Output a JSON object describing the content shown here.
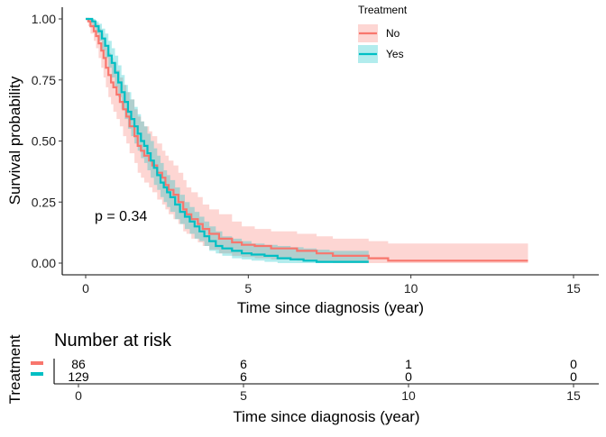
{
  "chart_data": [
    {
      "type": "line",
      "subtype": "kaplan-meier-survival",
      "title": "",
      "xlabel": "Time since diagnosis (year)",
      "ylabel": "Survival probability",
      "xlim": [
        -0.4,
        15.7
      ],
      "ylim": [
        -0.05,
        1.04
      ],
      "xticks": [
        0,
        5,
        10,
        15
      ],
      "xtick_labels": [
        "0",
        "5",
        "10",
        "15"
      ],
      "yticks": [
        0,
        0.25,
        0.5,
        0.75,
        1
      ],
      "ytick_labels": [
        "0.00",
        "0.25",
        "0.50",
        "0.75",
        "1.00"
      ],
      "grid": false,
      "legend": {
        "title": "Treatment",
        "position": "top-right",
        "entries": [
          "No",
          "Yes"
        ]
      },
      "annotation": {
        "text": "p = 0.34",
        "x": 0.3,
        "y": 0.18
      },
      "series": [
        {
          "name": "No",
          "color": "#F8766D",
          "band_color": "#F8766D",
          "x": [
            0,
            0.08,
            0.15,
            0.25,
            0.32,
            0.4,
            0.48,
            0.55,
            0.62,
            0.7,
            0.78,
            0.85,
            0.95,
            1.05,
            1.15,
            1.25,
            1.35,
            1.5,
            1.6,
            1.7,
            1.8,
            1.95,
            2.05,
            2.2,
            2.35,
            2.45,
            2.55,
            2.7,
            2.85,
            3.0,
            3.1,
            3.25,
            3.45,
            3.6,
            3.8,
            4.1,
            4.5,
            4.8,
            5.2,
            5.7,
            6.5,
            7.1,
            7.6,
            8.7,
            9.3,
            12.5,
            13.6
          ],
          "y": [
            1.0,
            0.99,
            0.97,
            0.95,
            0.93,
            0.9,
            0.87,
            0.84,
            0.8,
            0.77,
            0.74,
            0.72,
            0.69,
            0.66,
            0.63,
            0.6,
            0.56,
            0.52,
            0.48,
            0.46,
            0.44,
            0.42,
            0.4,
            0.37,
            0.35,
            0.32,
            0.3,
            0.28,
            0.25,
            0.22,
            0.2,
            0.18,
            0.16,
            0.14,
            0.12,
            0.1,
            0.085,
            0.075,
            0.07,
            0.06,
            0.05,
            0.04,
            0.03,
            0.02,
            0.01,
            0.01,
            0.01
          ],
          "lower": [
            1.0,
            0.97,
            0.94,
            0.91,
            0.88,
            0.84,
            0.8,
            0.76,
            0.72,
            0.68,
            0.65,
            0.62,
            0.59,
            0.56,
            0.52,
            0.49,
            0.45,
            0.41,
            0.37,
            0.35,
            0.33,
            0.31,
            0.29,
            0.26,
            0.24,
            0.22,
            0.2,
            0.18,
            0.16,
            0.13,
            0.12,
            0.1,
            0.085,
            0.07,
            0.055,
            0.04,
            0.03,
            0.025,
            0.02,
            0.015,
            0.01,
            0.005,
            0,
            0,
            0,
            0,
            0
          ],
          "upper": [
            1.0,
            1.0,
            1.0,
            0.99,
            0.98,
            0.96,
            0.94,
            0.92,
            0.89,
            0.86,
            0.84,
            0.82,
            0.79,
            0.76,
            0.73,
            0.7,
            0.67,
            0.63,
            0.6,
            0.58,
            0.56,
            0.54,
            0.52,
            0.49,
            0.46,
            0.44,
            0.42,
            0.4,
            0.37,
            0.34,
            0.31,
            0.29,
            0.27,
            0.24,
            0.22,
            0.2,
            0.17,
            0.15,
            0.14,
            0.13,
            0.12,
            0.11,
            0.1,
            0.09,
            0.08,
            0.08,
            0.08
          ]
        },
        {
          "name": "Yes",
          "color": "#00BFC4",
          "band_color": "#00BFC4",
          "x": [
            0,
            0.1,
            0.2,
            0.3,
            0.4,
            0.5,
            0.6,
            0.7,
            0.8,
            0.9,
            1.0,
            1.1,
            1.2,
            1.3,
            1.4,
            1.5,
            1.6,
            1.7,
            1.8,
            1.9,
            2.0,
            2.1,
            2.2,
            2.3,
            2.4,
            2.5,
            2.6,
            2.75,
            2.9,
            3.05,
            3.2,
            3.35,
            3.5,
            3.65,
            3.8,
            4.0,
            4.2,
            4.5,
            4.8,
            5.1,
            5.5,
            5.9,
            6.3,
            6.7,
            7.1,
            7.5,
            8.7
          ],
          "y": [
            1.0,
            1.0,
            0.99,
            0.97,
            0.95,
            0.92,
            0.89,
            0.85,
            0.82,
            0.78,
            0.74,
            0.7,
            0.66,
            0.62,
            0.59,
            0.56,
            0.53,
            0.5,
            0.48,
            0.45,
            0.42,
            0.39,
            0.36,
            0.33,
            0.31,
            0.29,
            0.27,
            0.24,
            0.21,
            0.19,
            0.17,
            0.15,
            0.13,
            0.11,
            0.09,
            0.07,
            0.06,
            0.05,
            0.04,
            0.035,
            0.03,
            0.02,
            0.015,
            0.01,
            0.005,
            0.005,
            0.005
          ],
          "lower": [
            1.0,
            0.99,
            0.97,
            0.94,
            0.91,
            0.87,
            0.84,
            0.8,
            0.76,
            0.72,
            0.68,
            0.63,
            0.59,
            0.55,
            0.52,
            0.49,
            0.46,
            0.43,
            0.41,
            0.38,
            0.35,
            0.32,
            0.3,
            0.27,
            0.25,
            0.23,
            0.21,
            0.18,
            0.16,
            0.14,
            0.12,
            0.1,
            0.09,
            0.07,
            0.05,
            0.04,
            0.03,
            0.02,
            0.015,
            0.01,
            0.005,
            0,
            0,
            0,
            0,
            0,
            0
          ],
          "upper": [
            1.0,
            1.0,
            1.0,
            0.99,
            0.98,
            0.96,
            0.94,
            0.91,
            0.88,
            0.85,
            0.81,
            0.77,
            0.73,
            0.7,
            0.67,
            0.64,
            0.61,
            0.58,
            0.56,
            0.53,
            0.5,
            0.47,
            0.44,
            0.41,
            0.38,
            0.36,
            0.34,
            0.31,
            0.28,
            0.25,
            0.23,
            0.21,
            0.19,
            0.17,
            0.15,
            0.13,
            0.11,
            0.1,
            0.09,
            0.08,
            0.075,
            0.07,
            0.065,
            0.06,
            0.055,
            0.05,
            0.05
          ]
        }
      ]
    },
    {
      "type": "table",
      "subtype": "risk-table",
      "title": "Number at risk",
      "xlabel": "Time since diagnosis (year)",
      "ylabel": "Treatment",
      "xticks": [
        0,
        5,
        10,
        15
      ],
      "xtick_labels": [
        "0",
        "5",
        "10",
        "15"
      ],
      "rows": [
        {
          "name": "No",
          "color": "#F8766D",
          "values": [
            "86",
            "6",
            "1",
            "0"
          ]
        },
        {
          "name": "Yes",
          "color": "#00BFC4",
          "values": [
            "129",
            "6",
            "0",
            "0"
          ]
        }
      ]
    }
  ]
}
